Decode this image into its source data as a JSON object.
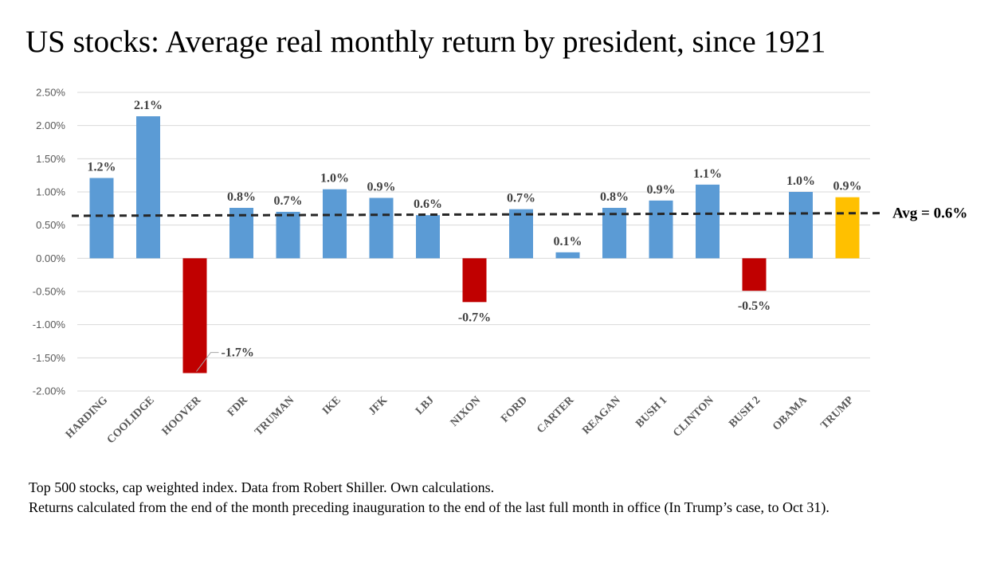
{
  "chart_data": {
    "type": "bar",
    "title": "US stocks: Average real monthly return by president, since 1921",
    "categories": [
      "HARDING",
      "COOLIDGE",
      "HOOVER",
      "FDR",
      "TRUMAN",
      "IKE",
      "JFK",
      "LBJ",
      "NIXON",
      "FORD",
      "CARTER",
      "REAGAN",
      "BUSH 1",
      "CLINTON",
      "BUSH 2",
      "OBAMA",
      "TRUMP"
    ],
    "values": [
      1.21,
      2.14,
      -1.73,
      0.76,
      0.7,
      1.04,
      0.91,
      0.65,
      -0.66,
      0.74,
      0.09,
      0.76,
      0.87,
      1.11,
      -0.49,
      1.0,
      0.92
    ],
    "data_labels": [
      "1.2%",
      "2.1%",
      "-1.7%",
      "0.8%",
      "0.7%",
      "1.0%",
      "0.9%",
      "0.6%",
      "-0.7%",
      "0.7%",
      "0.1%",
      "0.8%",
      "0.9%",
      "1.1%",
      "-0.5%",
      "1.0%",
      "0.9%"
    ],
    "bar_colors": [
      "#5B9BD5",
      "#5B9BD5",
      "#C00000",
      "#5B9BD5",
      "#5B9BD5",
      "#5B9BD5",
      "#5B9BD5",
      "#5B9BD5",
      "#C00000",
      "#5B9BD5",
      "#5B9BD5",
      "#5B9BD5",
      "#5B9BD5",
      "#5B9BD5",
      "#C00000",
      "#5B9BD5",
      "#FFC000"
    ],
    "ylim": [
      -2.0,
      2.5
    ],
    "yticks": [
      2.5,
      2.0,
      1.5,
      1.0,
      0.5,
      0.0,
      -0.5,
      -1.0,
      -1.5,
      -2.0
    ],
    "ytick_labels": [
      "2.50%",
      "2.00%",
      "1.50%",
      "1.00%",
      "0.50%",
      "0.00%",
      "-0.50%",
      "-1.00%",
      "-1.50%",
      "-2.00%"
    ],
    "grid": true,
    "average_line": {
      "value": 0.64,
      "label": "Avg = 0.6%",
      "style": "dashed",
      "color": "#262626"
    }
  },
  "footnote": {
    "line1": "Top 500 stocks, cap weighted index. Data from Robert Shiller. Own calculations.",
    "line2": "Returns calculated from the end of the month preceding inauguration to the end of the last full month in office (In Trump’s case, to Oct 31)."
  }
}
